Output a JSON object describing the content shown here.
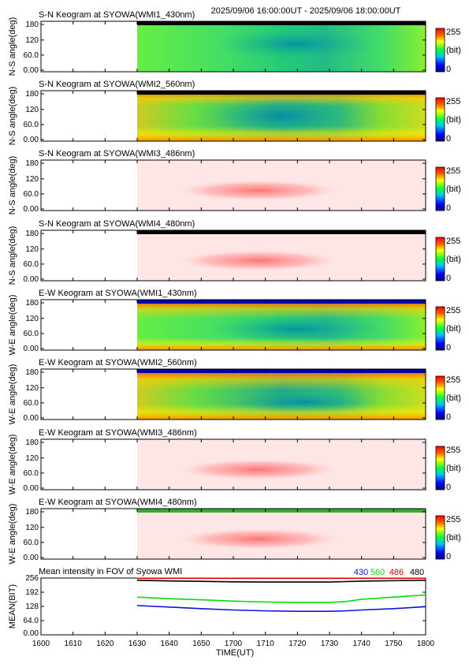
{
  "header": {
    "time_range": "2025/09/06 16:00:00UT - 2025/09/06 18:00:00UT"
  },
  "colorbar": {
    "max_label": "255",
    "unit_label": "(bit)",
    "min_label": "0"
  },
  "panels": [
    {
      "title": "S-N Keogram at SYOWA(WMI1_430nm)",
      "ylabel": "N-S angle(deg)",
      "ticks": [
        "180",
        "120",
        "60.0",
        "0.00"
      ],
      "colormap": "green",
      "start_min": 30,
      "top_band": "#000000"
    },
    {
      "title": "S-N Keogram at SYOWA(WMI2_560nm)",
      "ylabel": "N-S angle(deg)",
      "ticks": [
        "180",
        "120",
        "60.0",
        "0.00"
      ],
      "colormap": "green_red",
      "start_min": 30,
      "top_band": "#000000"
    },
    {
      "title": "S-N Keogram at SYOWA(WMI3_486nm)",
      "ylabel": "N-S angle(deg)",
      "ticks": [
        "180",
        "120",
        "60.0",
        "0.00"
      ],
      "colormap": "pink",
      "start_min": 30,
      "top_band": ""
    },
    {
      "title": "S-N Keogram at SYOWA(WMI4_480nm)",
      "ylabel": "N-S angle(deg)",
      "ticks": [
        "180",
        "120",
        "60.0",
        "0.00"
      ],
      "colormap": "pink",
      "start_min": 30,
      "top_band": "#000000"
    },
    {
      "title": "E-W Keogram at SYOWA(WMI1_430nm)",
      "ylabel": "W-E angle(deg)",
      "ticks": [
        "180",
        "120",
        "60.0",
        "0.00"
      ],
      "colormap": "green_band",
      "start_min": 30,
      "top_band": "#0000aa"
    },
    {
      "title": "E-W Keogram at SYOWA(WMI2_560nm)",
      "ylabel": "W-E angle(deg)",
      "ticks": [
        "180",
        "120",
        "60.0",
        "0.00"
      ],
      "colormap": "green_red_band",
      "start_min": 30,
      "top_band": "#0000aa"
    },
    {
      "title": "E-W Keogram at SYOWA(WMI3_486nm)",
      "ylabel": "W-E angle(deg)",
      "ticks": [
        "180",
        "120",
        "60.0",
        "0.00"
      ],
      "colormap": "pink",
      "start_min": 30,
      "top_band": ""
    },
    {
      "title": "E-W Keogram at SYOWA(WMI4_480nm)",
      "ylabel": "W-E angle(deg)",
      "ticks": [
        "180",
        "120",
        "60.0",
        "0.00"
      ],
      "colormap": "pink",
      "start_min": 30,
      "top_band": "#33aa33"
    }
  ],
  "chart_data": {
    "type": "line",
    "title": "Mean intensity in FOV of Syowa WMI",
    "xlabel": "TIME(UT)",
    "ylabel": "MEAN(BIT)",
    "x_ticks": [
      "1600",
      "1610",
      "1620",
      "1630",
      "1640",
      "1650",
      "1700",
      "1710",
      "1720",
      "1730",
      "1740",
      "1750",
      "1800"
    ],
    "y_ticks": [
      "256",
      "192",
      "128",
      "64.0",
      "0.00"
    ],
    "xlim": [
      0,
      120
    ],
    "ylim": [
      0,
      256
    ],
    "x_minutes": [
      30,
      40,
      50,
      60,
      70,
      80,
      90,
      95,
      100,
      110,
      120
    ],
    "series": [
      {
        "name": "430",
        "color": "#1010dd",
        "values": [
          132,
          125,
          118,
          112,
          108,
          106,
          106,
          108,
          112,
          118,
          127
        ]
      },
      {
        "name": "560",
        "color": "#00dd00",
        "values": [
          170,
          163,
          158,
          152,
          148,
          146,
          146,
          150,
          160,
          170,
          180
        ]
      },
      {
        "name": "486",
        "color": "#dd0000",
        "values": [
          255,
          255,
          255,
          255,
          255,
          255,
          255,
          255,
          255,
          255,
          255
        ]
      },
      {
        "name": "480",
        "color": "#000000",
        "values": [
          246,
          243,
          241,
          239,
          238,
          238,
          238,
          240,
          242,
          244,
          246
        ]
      }
    ]
  }
}
